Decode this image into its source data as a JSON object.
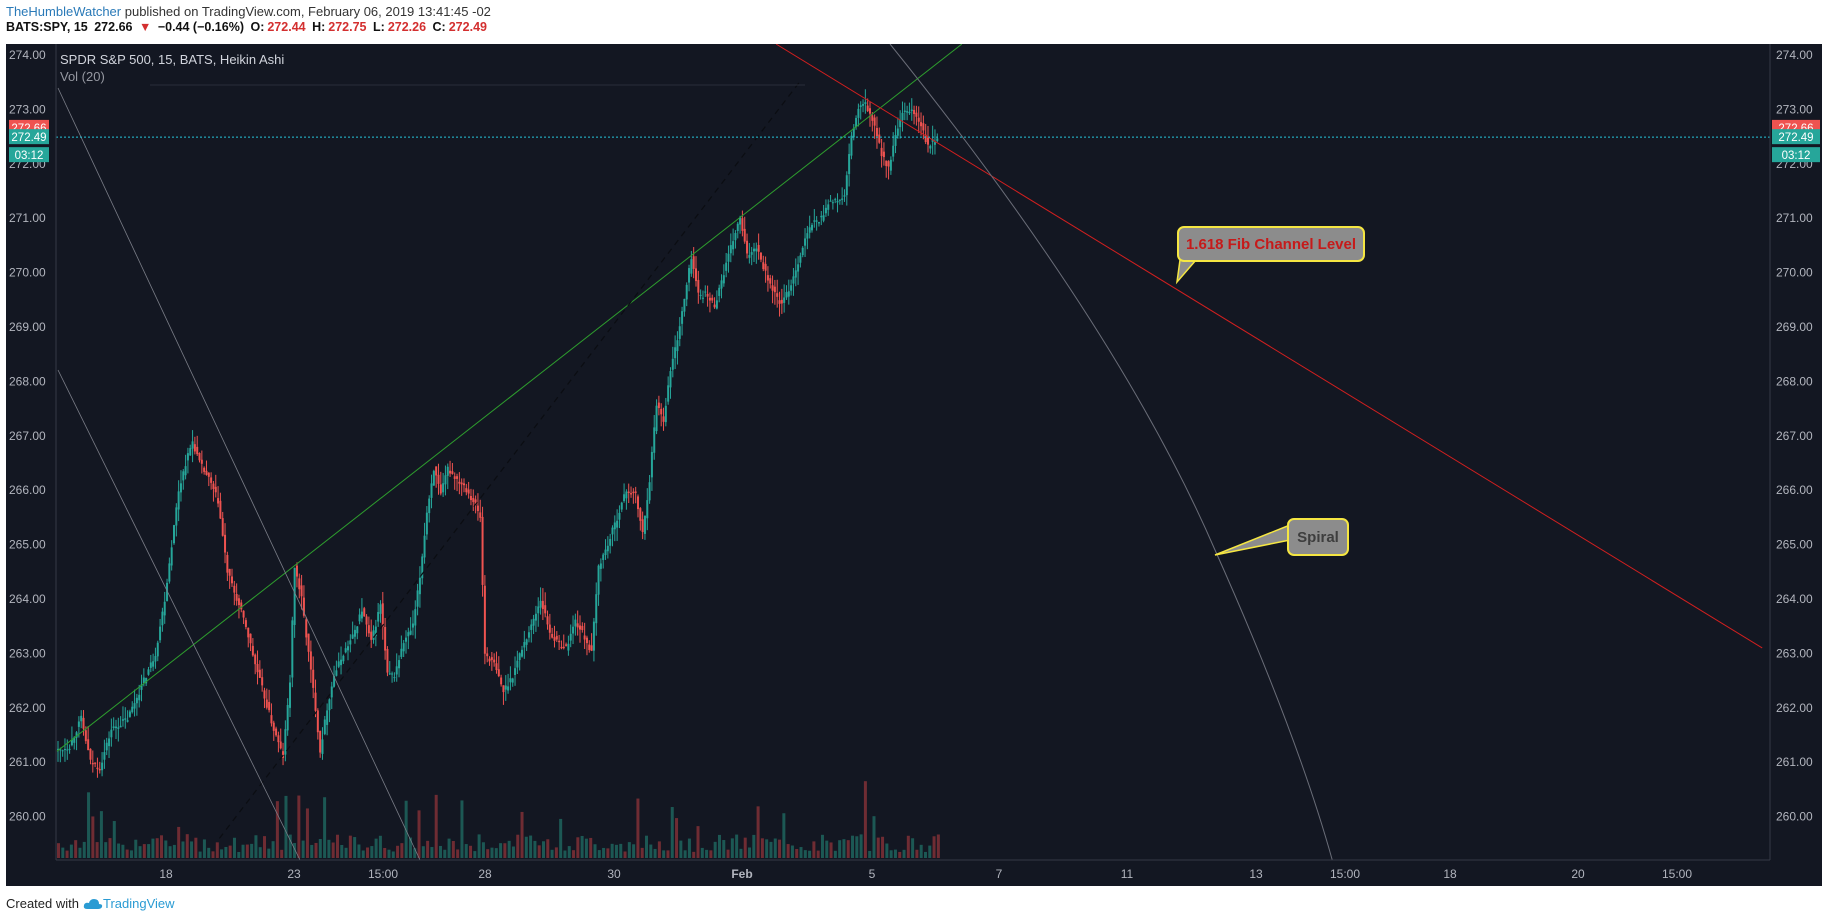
{
  "header": {
    "author": "TheHumbleWatcher",
    "published_text": " published on TradingView.com, February 06, 2019 13:41:45 -02",
    "symbol": "BATS:SPY, 15",
    "last": "272.66",
    "change_arrow": "▼",
    "change": "−0.44 (−0.16%)",
    "o_label": "O:",
    "o_value": "272.44",
    "h_label": "H:",
    "h_value": "272.75",
    "l_label": "L:",
    "l_value": "272.26",
    "c_label": "C:",
    "c_value": "272.49"
  },
  "legend": {
    "title": "SPDR S&P 500, 15, BATS, Heikin Ashi",
    "volume": "Vol (20)"
  },
  "footer": {
    "created_with": "Created with",
    "brand": "TradingView"
  },
  "colors": {
    "background": "#131722",
    "up": "#26a69a",
    "down": "#ef5350",
    "axis_text": "#b2b5be",
    "fib_line": "#d11f1f",
    "channel_line": "#2e9e2e",
    "spiral_line": "#6a6d78",
    "price_line": "#26c6da",
    "callout_border": "#f5e642"
  },
  "price_labels": {
    "last": "272.66",
    "close": "272.49",
    "countdown": "03:12"
  },
  "annotations": {
    "fib_label": "1.618 Fib Channel Level",
    "spiral_label": "Spiral"
  },
  "chart_data": {
    "type": "candlestick",
    "title": "SPDR S&P 500, 15, BATS, Heikin Ashi",
    "ylim": [
      259.4,
      274.2
    ],
    "y_ticks": [
      "274.00",
      "273.00",
      "272.00",
      "271.00",
      "270.00",
      "269.00",
      "268.00",
      "267.00",
      "266.00",
      "265.00",
      "264.00",
      "263.00",
      "262.00",
      "261.00",
      "260.00"
    ],
    "x_ticks": [
      "18",
      "23",
      "15:00",
      "28",
      "30",
      "Feb",
      "5",
      "7",
      "11",
      "13",
      "15:00",
      "18",
      "20",
      "15:00"
    ],
    "x_tick_bold": "Feb",
    "path_points": [
      [
        0,
        261.2
      ],
      [
        12,
        261.3
      ],
      [
        22,
        261.8
      ],
      [
        30,
        261.0
      ],
      [
        38,
        260.9
      ],
      [
        48,
        261.6
      ],
      [
        62,
        261.8
      ],
      [
        76,
        262.5
      ],
      [
        86,
        263.0
      ],
      [
        94,
        264.0
      ],
      [
        100,
        265.0
      ],
      [
        106,
        266.0
      ],
      [
        112,
        266.5
      ],
      [
        118,
        266.9
      ],
      [
        124,
        266.5
      ],
      [
        132,
        266.2
      ],
      [
        140,
        265.8
      ],
      [
        148,
        264.5
      ],
      [
        156,
        264.0
      ],
      [
        164,
        263.5
      ],
      [
        172,
        262.8
      ],
      [
        180,
        262.2
      ],
      [
        188,
        261.6
      ],
      [
        196,
        261.1
      ],
      [
        202,
        262.5
      ],
      [
        206,
        264.6
      ],
      [
        212,
        264.0
      ],
      [
        218,
        263.0
      ],
      [
        224,
        262.0
      ],
      [
        228,
        261.2
      ],
      [
        234,
        262.0
      ],
      [
        240,
        262.6
      ],
      [
        248,
        263.0
      ],
      [
        256,
        263.3
      ],
      [
        264,
        263.8
      ],
      [
        272,
        263.2
      ],
      [
        280,
        263.9
      ],
      [
        286,
        262.6
      ],
      [
        292,
        262.6
      ],
      [
        300,
        263.2
      ],
      [
        308,
        263.5
      ],
      [
        314,
        264.4
      ],
      [
        320,
        265.6
      ],
      [
        326,
        266.4
      ],
      [
        332,
        265.9
      ],
      [
        338,
        266.4
      ],
      [
        346,
        266.2
      ],
      [
        352,
        266.1
      ],
      [
        360,
        265.8
      ],
      [
        366,
        265.5
      ],
      [
        370,
        263.0
      ],
      [
        378,
        262.8
      ],
      [
        386,
        262.3
      ],
      [
        394,
        262.6
      ],
      [
        402,
        263.1
      ],
      [
        410,
        263.5
      ],
      [
        418,
        264.0
      ],
      [
        426,
        263.4
      ],
      [
        432,
        263.2
      ],
      [
        440,
        263.1
      ],
      [
        448,
        263.6
      ],
      [
        456,
        263.3
      ],
      [
        462,
        263.0
      ],
      [
        468,
        264.6
      ],
      [
        476,
        265.0
      ],
      [
        484,
        265.5
      ],
      [
        492,
        266.0
      ],
      [
        500,
        265.9
      ],
      [
        506,
        265.2
      ],
      [
        512,
        266.2
      ],
      [
        518,
        267.6
      ],
      [
        524,
        267.3
      ],
      [
        530,
        268.2
      ],
      [
        536,
        268.8
      ],
      [
        542,
        269.5
      ],
      [
        548,
        270.3
      ],
      [
        554,
        269.6
      ],
      [
        560,
        269.6
      ],
      [
        568,
        269.4
      ],
      [
        576,
        270.0
      ],
      [
        584,
        270.6
      ],
      [
        590,
        271.0
      ],
      [
        596,
        270.3
      ],
      [
        604,
        270.5
      ],
      [
        612,
        270.0
      ],
      [
        620,
        269.6
      ],
      [
        626,
        269.4
      ],
      [
        634,
        269.8
      ],
      [
        640,
        270.2
      ],
      [
        646,
        270.6
      ],
      [
        652,
        270.9
      ],
      [
        660,
        271.0
      ],
      [
        666,
        271.3
      ],
      [
        672,
        271.3
      ],
      [
        680,
        271.4
      ],
      [
        686,
        272.5
      ],
      [
        692,
        273.0
      ],
      [
        698,
        273.1
      ],
      [
        704,
        272.8
      ],
      [
        712,
        272.2
      ],
      [
        718,
        271.9
      ],
      [
        724,
        272.5
      ],
      [
        730,
        272.9
      ],
      [
        738,
        273.0
      ],
      [
        746,
        272.7
      ],
      [
        752,
        272.3
      ],
      [
        760,
        272.49
      ]
    ],
    "volume_bars": 206,
    "trend_lines": [
      {
        "name": "channel",
        "from": [
          0,
          261.2
        ],
        "to": [
          780,
          274.2
        ]
      },
      {
        "name": "fib-1.618",
        "from": [
          620,
          274.2
        ],
        "to": [
          1470,
          263.1
        ]
      },
      {
        "name": "dashed-channel",
        "from": [
          140,
          259.6
        ],
        "to": [
          640,
          273.5
        ]
      }
    ],
    "horizontal_lines": [
      {
        "name": "close",
        "y": 272.49
      }
    ]
  }
}
